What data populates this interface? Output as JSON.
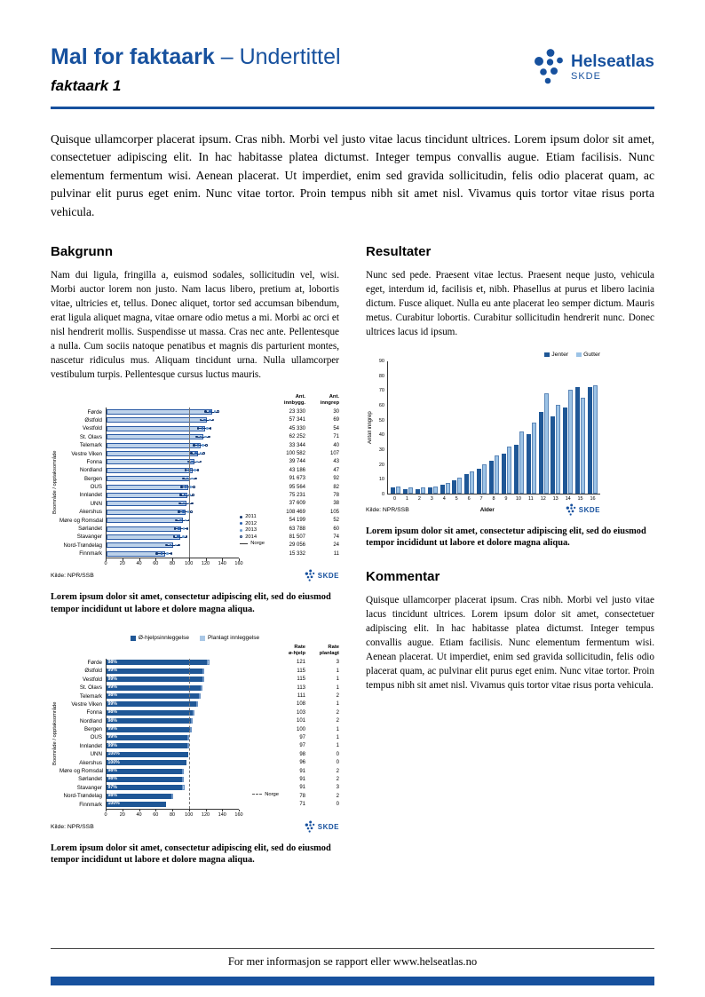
{
  "header": {
    "title": "Mal for faktaark",
    "subtitle": "– Undertittel",
    "docname": "faktaark 1",
    "brand": {
      "name": "Helseatlas",
      "org": "SKDE"
    }
  },
  "colors": {
    "brand": "#17519E",
    "bar_dark": "#1F5796",
    "bar_light": "#BDD2EA",
    "bar_light2": "#9CC3E6"
  },
  "intro": "Quisque ullamcorper placerat ipsum. Cras nibh. Morbi vel justo vitae lacus tincidunt ultrices. Lorem ipsum dolor sit amet, consectetuer adipiscing elit. In hac habitasse platea dictumst. Integer tempus convallis augue. Etiam facilisis. Nunc elementum fermentum wisi. Aenean placerat. Ut imperdiet, enim sed gravida sollicitudin, felis odio placerat quam, ac pulvinar elit purus eget enim. Nunc vitae tortor. Proin tempus nibh sit amet nisl. Vivamus quis tortor vitae risus porta vehicula.",
  "sections": {
    "bakgrunn": {
      "heading": "Bakgrunn",
      "body": "Nam dui ligula, fringilla a, euismod sodales, sollicitudin vel, wisi. Morbi auctor lorem non justo. Nam lacus libero, pretium at, lobortis vitae, ultricies et, tellus. Donec aliquet, tortor sed accumsan bibendum, erat ligula aliquet magna, vitae ornare odio metus a mi. Morbi ac orci et nisl hendrerit mollis. Suspendisse ut massa. Cras nec ante. Pellentesque a nulla. Cum sociis natoque penatibus et magnis dis parturient montes, nascetur ridiculus mus. Aliquam tincidunt urna. Nulla ullamcorper vestibulum turpis. Pellentesque cursus luctus mauris."
    },
    "resultater": {
      "heading": "Resultater",
      "body": "Nunc sed pede. Praesent vitae lectus. Praesent neque justo, vehicula eget, interdum id, facilisis et, nibh. Phasellus at purus et libero lacinia dictum. Fusce aliquet. Nulla eu ante placerat leo semper dictum. Mauris metus. Curabitur lobortis. Curabitur sollicitudin hendrerit nunc. Donec ultrices lacus id ipsum."
    },
    "kommentar": {
      "heading": "Kommentar",
      "body": "Quisque ullamcorper placerat ipsum. Cras nibh. Morbi vel justo vitae lacus tincidunt ultrices. Lorem ipsum dolor sit amet, consectetuer adipiscing elit. In hac habitasse platea dictumst. Integer tempus convallis augue. Etiam facilisis. Nunc elementum fermentum wisi. Aenean placerat. Ut imperdiet, enim sed gravida sollicitudin, felis odio placerat quam, ac pulvinar elit purus eget enim. Nunc vitae tortor. Proin tempus nibh sit amet nisl. Vivamus quis tortor vitae risus porta vehicula."
    }
  },
  "captions": {
    "chart1": "Lorem ipsum dolor sit amet, consectetur adipiscing elit, sed do eiusmod tempor incididunt ut labore et dolore magna aliqua.",
    "chart2": "Lorem ipsum dolor sit amet, consectetur adipiscing elit, sed do eiusmod tempor incididunt ut labore et dolore magna aliqua.",
    "chart3": "Lorem ipsum dolor sit amet, consectetur adipiscing elit, sed do eiusmod tempor incididunt ut labore et dolore magna aliqua."
  },
  "footer": {
    "text": "For mer informasjon se rapport eller www.helseatlas.no"
  },
  "chart_data": [
    {
      "id": "rate-per-boomrade",
      "type": "bar",
      "orientation": "horizontal",
      "ylabel": "Boområde / opptaksområde",
      "xlim": [
        0,
        160
      ],
      "xticks": [
        0,
        20,
        40,
        60,
        80,
        100,
        120,
        140,
        160
      ],
      "reference_x": 100,
      "col_headers": [
        [
          "Ant.",
          "innbygg."
        ],
        [
          "Ant.",
          "inngrep"
        ]
      ],
      "legend": [
        {
          "label": "2011",
          "marker": "dot-dark"
        },
        {
          "label": "2012",
          "marker": "dot-mid"
        },
        {
          "label": "2013",
          "marker": "dot-light"
        },
        {
          "label": "2014",
          "marker": "dot-open"
        },
        {
          "label": "Norge",
          "marker": "line"
        }
      ],
      "source": "Kilde: NPR/SSB",
      "rows": [
        {
          "label": "Førde",
          "bar": 127,
          "points": [
            119,
            124,
            130,
            134
          ],
          "innbygg": "23 330",
          "inngrep": "30"
        },
        {
          "label": "Østfold",
          "bar": 121,
          "points": [
            113,
            118,
            124,
            128
          ],
          "innbygg": "57 341",
          "inngrep": "69"
        },
        {
          "label": "Vestfold",
          "bar": 118,
          "points": [
            110,
            115,
            121,
            125
          ],
          "innbygg": "45 330",
          "inngrep": "54"
        },
        {
          "label": "St. Olavs",
          "bar": 116,
          "points": [
            108,
            113,
            119,
            123
          ],
          "innbygg": "62 252",
          "inngrep": "71"
        },
        {
          "label": "Telemark",
          "bar": 113,
          "points": [
            105,
            110,
            116,
            120
          ],
          "innbygg": "33 344",
          "inngrep": "40"
        },
        {
          "label": "Vestre Viken",
          "bar": 110,
          "points": [
            102,
            107,
            113,
            117
          ],
          "innbygg": "100 582",
          "inngrep": "107"
        },
        {
          "label": "Fonna",
          "bar": 106,
          "points": [
            98,
            103,
            109,
            113
          ],
          "innbygg": "39 744",
          "inngrep": "43"
        },
        {
          "label": "Nordland",
          "bar": 103,
          "points": [
            95,
            100,
            106,
            110
          ],
          "innbygg": "43 186",
          "inngrep": "47"
        },
        {
          "label": "Bergen",
          "bar": 100,
          "points": [
            92,
            97,
            103,
            107
          ],
          "innbygg": "91 673",
          "inngrep": "92"
        },
        {
          "label": "OUS",
          "bar": 98,
          "points": [
            90,
            95,
            101,
            105
          ],
          "innbygg": "95 564",
          "inngrep": "82"
        },
        {
          "label": "Innlandet",
          "bar": 97,
          "points": [
            89,
            94,
            100,
            104
          ],
          "innbygg": "75 231",
          "inngrep": "78"
        },
        {
          "label": "UNN",
          "bar": 96,
          "points": [
            88,
            93,
            99,
            103
          ],
          "innbygg": "37 609",
          "inngrep": "38"
        },
        {
          "label": "Akershus",
          "bar": 95,
          "points": [
            87,
            92,
            98,
            102
          ],
          "innbygg": "108 469",
          "inngrep": "105"
        },
        {
          "label": "Møre og Romsdal",
          "bar": 92,
          "points": [
            84,
            89,
            95,
            99
          ],
          "innbygg": "54 199",
          "inngrep": "52"
        },
        {
          "label": "Sørlandet",
          "bar": 90,
          "points": [
            82,
            87,
            93,
            97
          ],
          "innbygg": "63 788",
          "inngrep": "60"
        },
        {
          "label": "Stavanger",
          "bar": 89,
          "points": [
            81,
            86,
            92,
            96
          ],
          "innbygg": "81 507",
          "inngrep": "74"
        },
        {
          "label": "Nord-Trøndelag",
          "bar": 80,
          "points": [
            72,
            77,
            83,
            87
          ],
          "innbygg": "29 056",
          "inngrep": "24"
        },
        {
          "label": "Finnmark",
          "bar": 70,
          "points": [
            60,
            66,
            73,
            78
          ],
          "innbygg": "15 332",
          "inngrep": "11"
        }
      ]
    },
    {
      "id": "innleggelsestype-per-boomrade",
      "type": "bar",
      "orientation": "horizontal",
      "stacked": true,
      "ylabel": "Boområde / opptaksområde",
      "xlim": [
        0,
        160
      ],
      "xticks": [
        0,
        20,
        40,
        60,
        80,
        100,
        120,
        140,
        160
      ],
      "legend": [
        {
          "label": "Ø-hjelpsinnleggelse",
          "color": "#1F5796"
        },
        {
          "label": "Planlagt innleggelse",
          "color": "#A9C7E6"
        }
      ],
      "reference": {
        "label": "Norge",
        "x": 100,
        "style": "dashed"
      },
      "col_headers": [
        [
          "Rate",
          "ø-hjelp"
        ],
        [
          "Rate",
          "planlagt"
        ]
      ],
      "source": "Kilde: NPR/SSB",
      "rows": [
        {
          "label": "Førde",
          "pct": "98%",
          "ohjelp": 121,
          "planlagt": 3
        },
        {
          "label": "Østfold",
          "pct": "99%",
          "ohjelp": 115,
          "planlagt": 1
        },
        {
          "label": "Vestfold",
          "pct": "99%",
          "ohjelp": 115,
          "planlagt": 1
        },
        {
          "label": "St. Olavs",
          "pct": "99%",
          "ohjelp": 113,
          "planlagt": 1
        },
        {
          "label": "Telemark",
          "pct": "98%",
          "ohjelp": 111,
          "planlagt": 2
        },
        {
          "label": "Vestre Viken",
          "pct": "99%",
          "ohjelp": 108,
          "planlagt": 1
        },
        {
          "label": "Fonna",
          "pct": "98%",
          "ohjelp": 103,
          "planlagt": 2
        },
        {
          "label": "Nordland",
          "pct": "98%",
          "ohjelp": 101,
          "planlagt": 2
        },
        {
          "label": "Bergen",
          "pct": "99%",
          "ohjelp": 100,
          "planlagt": 1
        },
        {
          "label": "OUS",
          "pct": "99%",
          "ohjelp": 97,
          "planlagt": 1
        },
        {
          "label": "Innlandet",
          "pct": "99%",
          "ohjelp": 97,
          "planlagt": 1
        },
        {
          "label": "UNN",
          "pct": "100%",
          "ohjelp": 98,
          "planlagt": 0
        },
        {
          "label": "Akershus",
          "pct": "100%",
          "ohjelp": 96,
          "planlagt": 0
        },
        {
          "label": "Møre og Romsdal",
          "pct": "98%",
          "ohjelp": 91,
          "planlagt": 2
        },
        {
          "label": "Sørlandet",
          "pct": "98%",
          "ohjelp": 91,
          "planlagt": 2
        },
        {
          "label": "Stavanger",
          "pct": "97%",
          "ohjelp": 91,
          "planlagt": 3
        },
        {
          "label": "Nord-Trøndelag",
          "pct": "98%",
          "ohjelp": 78,
          "planlagt": 2
        },
        {
          "label": "Finnmark",
          "pct": "100%",
          "ohjelp": 71,
          "planlagt": 0
        }
      ]
    },
    {
      "id": "inngrep-etter-alder",
      "type": "bar",
      "orientation": "vertical",
      "grouped": true,
      "xlabel": "Alder",
      "ylabel": "Antall inngrep",
      "ylim": [
        0,
        90
      ],
      "yticks": [
        0,
        10,
        20,
        30,
        40,
        50,
        60,
        70,
        80,
        90
      ],
      "categories": [
        "0",
        "1",
        "2",
        "3",
        "4",
        "5",
        "6",
        "7",
        "8",
        "9",
        "10",
        "11",
        "12",
        "13",
        "14",
        "15",
        "16"
      ],
      "series": [
        {
          "name": "Jenter",
          "color": "#1F5796",
          "values": [
            4,
            3,
            3,
            4,
            6,
            9,
            13,
            17,
            22,
            27,
            33,
            40,
            55,
            52,
            58,
            72,
            72
          ]
        },
        {
          "name": "Gutter",
          "color": "#9CC3E6",
          "values": [
            5,
            4,
            4,
            5,
            7,
            11,
            15,
            20,
            26,
            32,
            42,
            48,
            68,
            60,
            70,
            65,
            73
          ]
        }
      ],
      "source": "Kilde: NPR/SSB"
    }
  ]
}
